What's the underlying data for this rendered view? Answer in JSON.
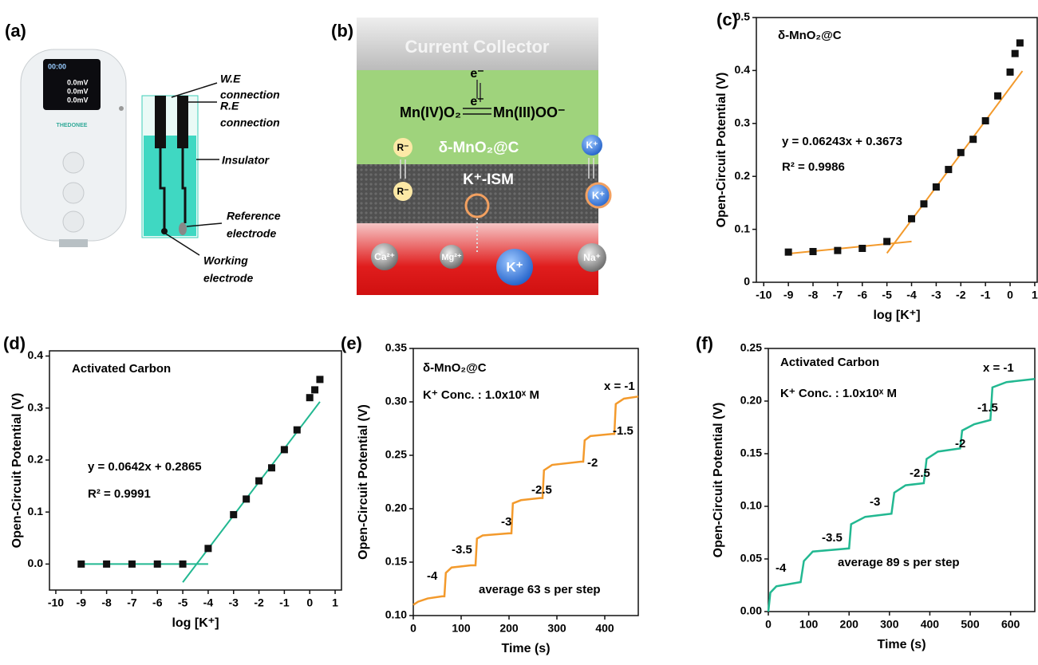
{
  "panel_labels": [
    "(a)",
    "(b)",
    "(c)",
    "(d)",
    "(e)",
    "(f)"
  ],
  "panel_a": {
    "brand": "THEDONEE",
    "screen": [
      "00:00",
      "0.0mV",
      "0.0mV",
      "0.0mV"
    ],
    "labels": [
      [
        "W.E",
        "connection"
      ],
      [
        "R.E",
        "connection"
      ],
      [
        "Insulator"
      ],
      [
        "Reference",
        "electrode"
      ],
      [
        "Working",
        "electrode"
      ]
    ]
  },
  "panel_b": {
    "collector": "Current Collector",
    "electron_top": "e⁻",
    "electron_mid": "e⁻",
    "reactant": "Mn(IV)O₂",
    "product": "Mn(III)OO⁻",
    "layer": "δ-MnO₂@C",
    "ism": "K⁺-ISM",
    "ions": [
      "R⁻",
      "R⁻",
      "K⁺",
      "K⁺",
      "Ca²⁺",
      "Mg²⁺",
      "K⁺",
      "Na⁺"
    ]
  },
  "chart_data": [
    {
      "type": "scatter",
      "x_label": "log [K⁺]",
      "y_label": "Open-Circuit Potential (V)",
      "x": [
        -9,
        -8,
        -7,
        -6,
        -5,
        -4,
        -3.5,
        -3,
        -2.5,
        -2,
        -1.5,
        -1,
        -0.5,
        0,
        0.2,
        0.4
      ],
      "values": [
        0.057,
        0.058,
        0.06,
        0.064,
        0.077,
        0.12,
        0.148,
        0.18,
        0.213,
        0.245,
        0.27,
        0.305,
        0.352,
        0.397,
        0.432,
        0.452
      ],
      "color": "#111111",
      "fit_color": "#f39a2c",
      "fit_lines": [
        {
          "x": [
            -9,
            -4
          ],
          "values": [
            0.054,
            0.077
          ]
        },
        {
          "x": [
            -5,
            0.5
          ],
          "values": [
            0.055,
            0.399
          ]
        }
      ],
      "xlim": [
        -10.3,
        1.1
      ],
      "xticks": [
        -10,
        -9,
        -8,
        -7,
        -6,
        -5,
        -4,
        -3,
        -2,
        -1,
        0,
        1
      ],
      "ylim": [
        0,
        0.5
      ],
      "yticks": [
        0,
        0.1,
        0.2,
        0.3,
        0.4,
        0.5
      ],
      "annotations": [
        "δ-MnO₂@C",
        "y = 0.06243x + 0.3673",
        "R² = 0.9986"
      ]
    },
    {
      "type": "scatter",
      "x_label": "log [K⁺]",
      "y_label": "Open-Circuit Potential (V)",
      "x": [
        -9,
        -8,
        -7,
        -6,
        -5,
        -4,
        -3,
        -2.5,
        -2,
        -1.5,
        -1,
        -0.5,
        0,
        0.2,
        0.4
      ],
      "values": [
        0,
        0,
        0,
        0,
        0,
        0.03,
        0.095,
        0.125,
        0.16,
        0.185,
        0.22,
        0.258,
        0.32,
        0.335,
        0.355
      ],
      "color": "#111111",
      "fit_color": "#22b891",
      "fit_lines": [
        {
          "x": [
            -9,
            -4
          ],
          "values": [
            0,
            0
          ]
        },
        {
          "x": [
            -5,
            0.4
          ],
          "values": [
            -0.035,
            0.312
          ]
        }
      ],
      "xlim": [
        -10.25,
        1.25
      ],
      "xticks": [
        -10,
        -9,
        -8,
        -7,
        -6,
        -5,
        -4,
        -3,
        -2,
        -1,
        0,
        1
      ],
      "ylim": [
        -0.05,
        0.41
      ],
      "yticks": [
        {
          "value": 0,
          "label": "0.0"
        },
        0.1,
        0.2,
        0.3,
        0.4
      ],
      "annotations": [
        "Activated Carbon",
        "y = 0.0642x + 0.2865",
        "R² = 0.9991"
      ]
    },
    {
      "type": "line",
      "x_label": "Time (s)",
      "y_label": "Open-Circuit Potential (V)",
      "color": "#f39a2c",
      "x": [
        0,
        10,
        30,
        60,
        65,
        68,
        80,
        120,
        130,
        133,
        145,
        200,
        205,
        208,
        225,
        265,
        270,
        273,
        290,
        350,
        355,
        358,
        370,
        415,
        420,
        423,
        440,
        470
      ],
      "values": [
        0.11,
        0.113,
        0.116,
        0.118,
        0.118,
        0.14,
        0.145,
        0.147,
        0.147,
        0.172,
        0.175,
        0.177,
        0.177,
        0.205,
        0.208,
        0.21,
        0.21,
        0.236,
        0.241,
        0.244,
        0.244,
        0.264,
        0.268,
        0.27,
        0.27,
        0.298,
        0.303,
        0.305
      ],
      "xlim": [
        0,
        470
      ],
      "xticks": [
        0,
        100,
        200,
        300,
        400
      ],
      "ylim": [
        0.1,
        0.35
      ],
      "yticks": [
        {
          "value": 0.1,
          "label": "0.10"
        },
        0.15,
        {
          "value": 0.2,
          "label": "0.20"
        },
        0.25,
        {
          "value": 0.3,
          "label": "0.30"
        },
        0.35
      ],
      "annotations": [
        "δ-MnO₂@C",
        "K⁺ Conc. : 1.0x10ˣ M",
        "average 63 s per step",
        "-4",
        "-3.5",
        "-3",
        "-2.5",
        "-2",
        "-1.5",
        "x = -1"
      ]
    },
    {
      "type": "line",
      "x_label": "Time (s)",
      "y_label": "Open-Circuit Potential (V)",
      "color": "#22b891",
      "x": [
        0,
        5,
        20,
        80,
        88,
        110,
        200,
        205,
        240,
        305,
        312,
        340,
        385,
        392,
        420,
        475,
        480,
        510,
        550,
        555,
        590,
        660
      ],
      "values": [
        0.0,
        0.018,
        0.024,
        0.028,
        0.048,
        0.057,
        0.06,
        0.083,
        0.09,
        0.093,
        0.113,
        0.12,
        0.122,
        0.145,
        0.152,
        0.155,
        0.172,
        0.178,
        0.182,
        0.213,
        0.218,
        0.221
      ],
      "xlim": [
        0,
        660
      ],
      "xticks": [
        0,
        100,
        200,
        300,
        400,
        500,
        600
      ],
      "ylim": [
        0,
        0.25
      ],
      "yticks": [
        {
          "value": 0,
          "label": "0.00"
        },
        0.05,
        {
          "value": 0.1,
          "label": "0.10"
        },
        0.15,
        {
          "value": 0.2,
          "label": "0.20"
        },
        0.25
      ],
      "annotations": [
        "Activated Carbon",
        "K⁺ Conc. : 1.0x10ˣ M",
        "average 89 s per step",
        "-4",
        "-3.5",
        "-3",
        "-2.5",
        "-2",
        "-1.5",
        "x = -1"
      ]
    }
  ]
}
